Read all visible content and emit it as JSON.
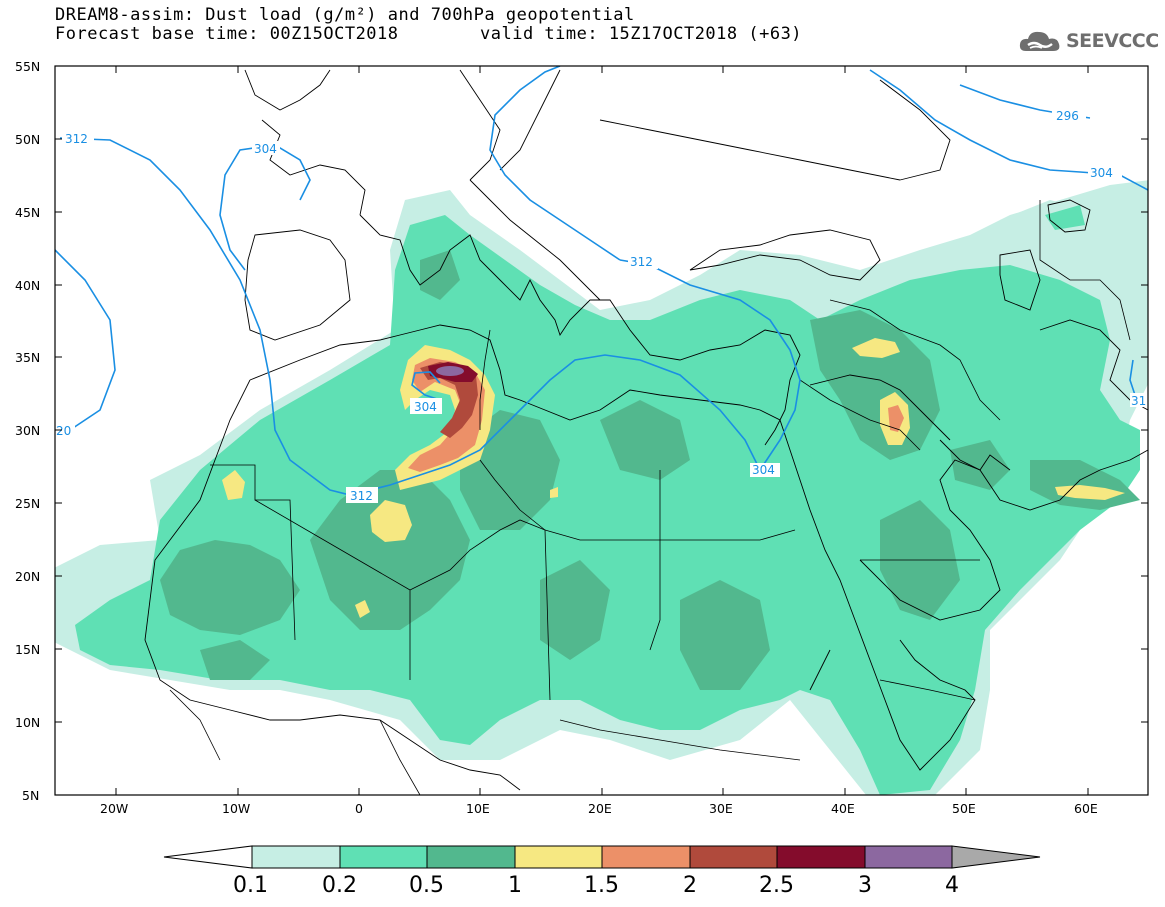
{
  "header": {
    "title_line1": "DREAM8-assim: Dust load (g/m²) and 700hPa geopotential",
    "forecast_base": "Forecast base time: 00Z15OCT2018",
    "valid_time": "valid time: 15Z17OCT2018 (+63)"
  },
  "logo": {
    "text": "SEEVCCC",
    "icon": "cloud-icon"
  },
  "map": {
    "lat_labels": [
      "55N",
      "50N",
      "45N",
      "40N",
      "35N",
      "30N",
      "25N",
      "20N",
      "15N",
      "10N",
      "5N"
    ],
    "lon_labels": [
      "20W",
      "10W",
      "0",
      "10E",
      "20E",
      "30E",
      "40E",
      "50E",
      "60E"
    ],
    "extent": {
      "lon": [
        -25,
        65
      ],
      "lat": [
        5,
        55
      ]
    },
    "contour_labels": [
      "312",
      "304",
      "304",
      "312",
      "312",
      "304",
      "296",
      "304",
      "312",
      "312",
      "20",
      "31"
    ]
  },
  "colorbar": {
    "ticks": [
      "0.1",
      "0.2",
      "0.5",
      "1",
      "1.5",
      "2",
      "2.5",
      "3",
      "4"
    ],
    "colors": [
      "#ffffff",
      "#c6eee4",
      "#5fe0b4",
      "#52b88e",
      "#f6e882",
      "#ec9068",
      "#b04a3c",
      "#840c2c",
      "#8c68a0",
      "#a9a9a9"
    ]
  }
}
